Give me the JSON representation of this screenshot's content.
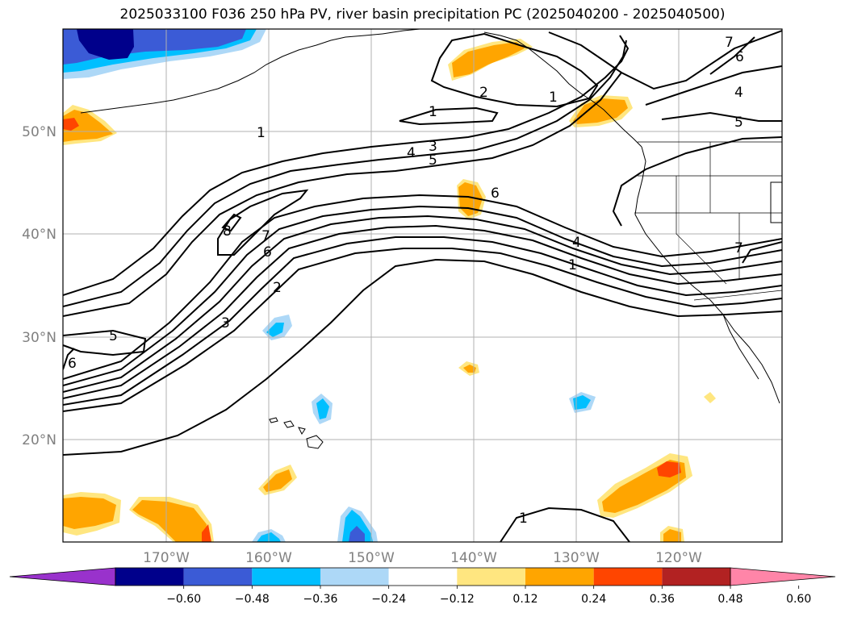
{
  "title": "2025033100 F036 250 hPa PV, river basin precipitation PC (2025040200 - 2025040500)",
  "lat_labels": [
    "50°N",
    "40°N",
    "30°N",
    "20°N"
  ],
  "lon_labels": [
    "170°W",
    "160°W",
    "150°W",
    "140°W",
    "130°W",
    "120°W"
  ],
  "colorbar": {
    "ticks": [
      "−0.60",
      "−0.48",
      "−0.36",
      "−0.24",
      "−0.12",
      "0.12",
      "0.24",
      "0.36",
      "0.48",
      "0.60"
    ],
    "colors": [
      "#9932cc",
      "#00008b",
      "#3b5bd6",
      "#00bfff",
      "#add8f7",
      "#ffffff",
      "#ffe680",
      "#ffa500",
      "#ff4500",
      "#b22222",
      "#ff85a8"
    ]
  },
  "contour_labels": [
    "1",
    "2",
    "1",
    "1",
    "4",
    "3",
    "5",
    "7",
    "6",
    "4",
    "5",
    "8",
    "7",
    "6",
    "2",
    "3",
    "6",
    "4",
    "1",
    "7",
    "5",
    "6",
    "1"
  ]
}
